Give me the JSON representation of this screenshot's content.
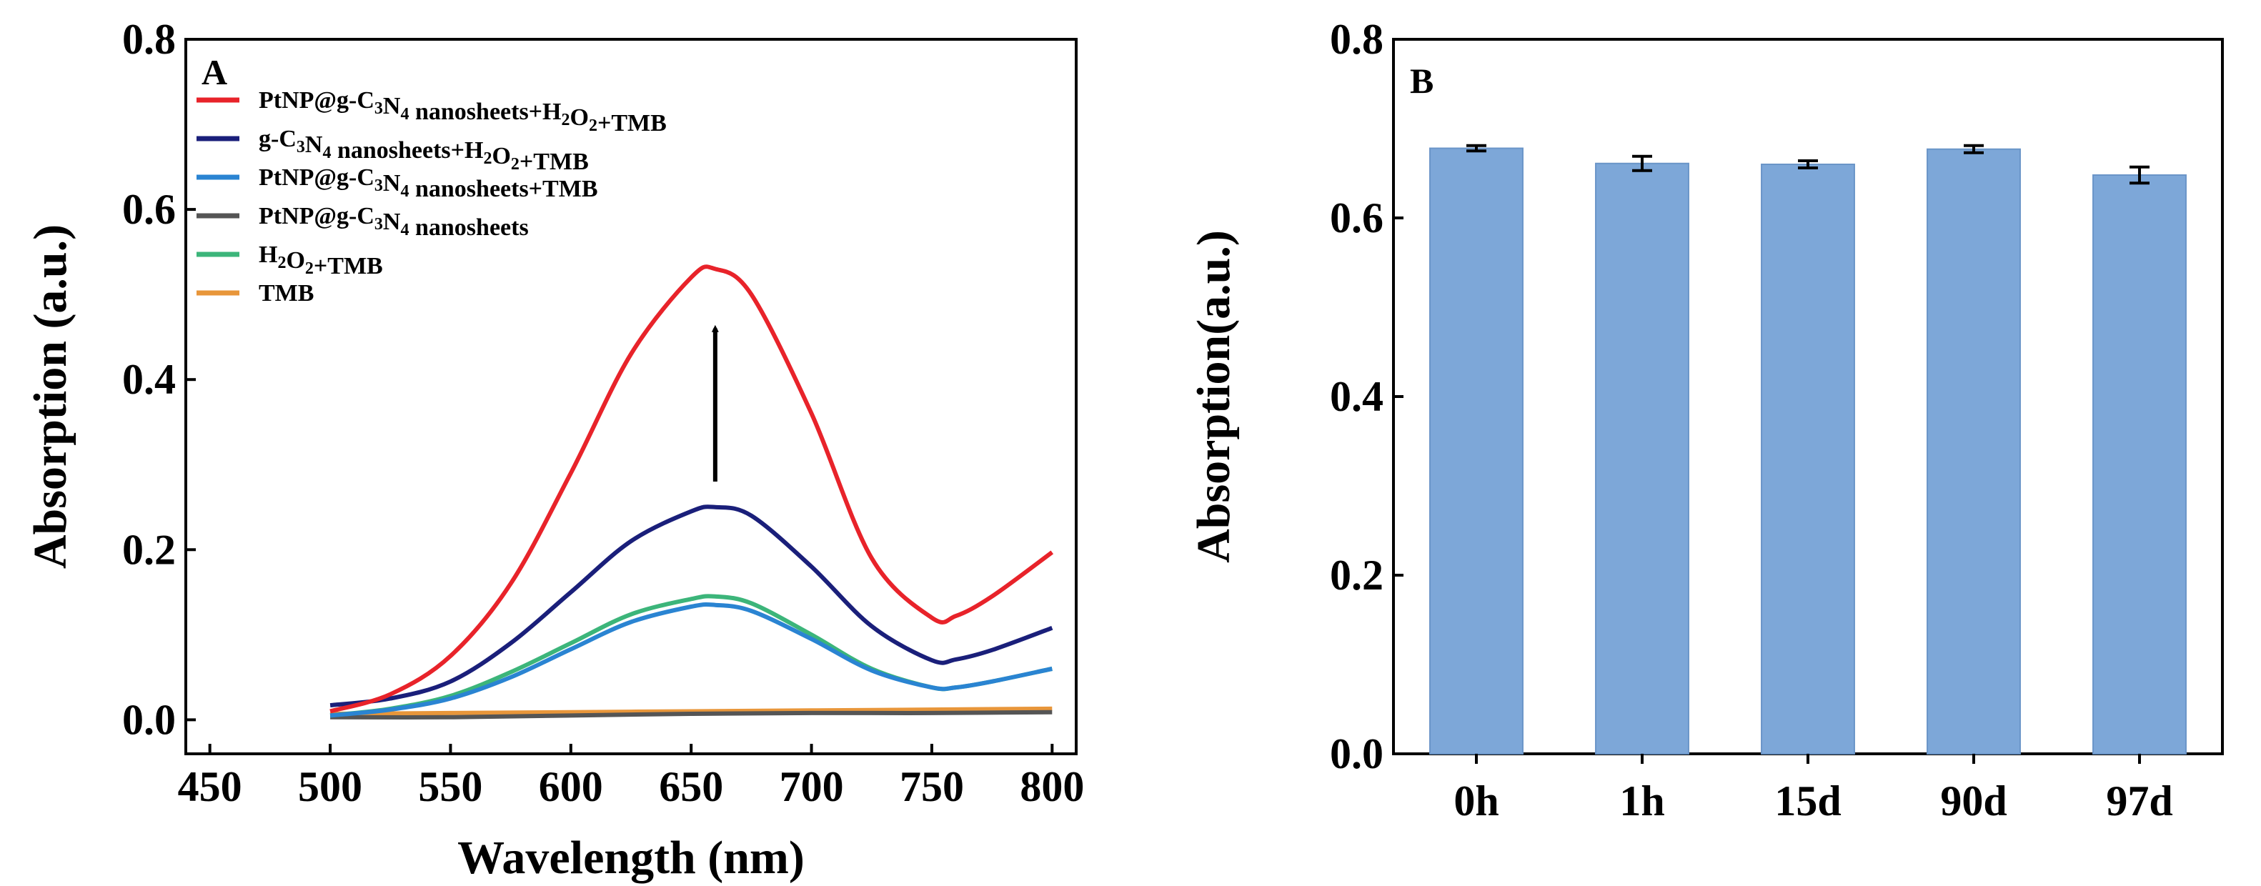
{
  "chart_data": [
    {
      "panel": "A",
      "type": "line",
      "xlabel": "Wavelength (nm)",
      "ylabel": "Absorption (a.u.)",
      "xlim": [
        440,
        810
      ],
      "ylim": [
        -0.04,
        0.8
      ],
      "xticks": [
        "450",
        "500",
        "550",
        "600",
        "650",
        "700",
        "750",
        "800"
      ],
      "yticks": [
        "0.0",
        "0.2",
        "0.4",
        "0.6",
        "0.8"
      ],
      "legend_position": "top-left",
      "annotation": "upward arrow near 660 nm, from 0.28 to 0.46",
      "series": [
        {
          "name": "PtNP@g-C3N4 nanosheets+H2O2+TMB",
          "legend": {
            "pre": "PtNP@g-C",
            "s1": "3",
            "m1": "N",
            "s2": "4",
            "m2": " nanosheets+H",
            "s3": "2",
            "m3": "O",
            "s4": "2",
            "post": "+TMB"
          },
          "color": "#e8232a",
          "x": [
            500,
            525,
            550,
            575,
            600,
            625,
            650,
            660,
            675,
            700,
            725,
            750,
            760,
            775,
            800
          ],
          "y": [
            0.01,
            0.03,
            0.075,
            0.16,
            0.29,
            0.43,
            0.52,
            0.53,
            0.5,
            0.36,
            0.19,
            0.12,
            0.122,
            0.145,
            0.197
          ]
        },
        {
          "name": "g-C3N4 nanosheets+H2O2+TMB",
          "legend": {
            "pre": "g-C",
            "s1": "3",
            "m1": "N",
            "s2": "4",
            "m2": " nanosheets+H",
            "s3": "2",
            "m3": "O",
            "s4": "2",
            "post": "+TMB"
          },
          "color": "#1a1f7a",
          "x": [
            500,
            525,
            550,
            575,
            600,
            625,
            650,
            660,
            675,
            700,
            725,
            750,
            760,
            775,
            800
          ],
          "y": [
            0.017,
            0.025,
            0.045,
            0.09,
            0.15,
            0.21,
            0.245,
            0.25,
            0.24,
            0.18,
            0.11,
            0.07,
            0.071,
            0.082,
            0.108
          ]
        },
        {
          "name": "PtNP@g-C3N4 nanosheets+TMB",
          "legend": {
            "pre": "PtNP@g-C",
            "s1": "3",
            "m1": "N",
            "s2": "4",
            "m2": "",
            "s3": "",
            "m3": "",
            "s4": "",
            "post": " nanosheets+TMB"
          },
          "color": "#2a84d2",
          "x": [
            500,
            525,
            550,
            575,
            600,
            625,
            650,
            660,
            675,
            700,
            725,
            750,
            760,
            775,
            800
          ],
          "y": [
            0.005,
            0.012,
            0.025,
            0.05,
            0.083,
            0.115,
            0.133,
            0.135,
            0.128,
            0.095,
            0.058,
            0.038,
            0.038,
            0.045,
            0.06
          ]
        },
        {
          "name": "PtNP@g-C3N4 nanosheets",
          "legend": {
            "pre": "PtNP@g-C",
            "s1": "3",
            "m1": "N",
            "s2": "4",
            "m2": "",
            "s3": "",
            "m3": "",
            "s4": "",
            "post": " nanosheets"
          },
          "color": "#555555",
          "x": [
            500,
            550,
            600,
            650,
            700,
            750,
            800
          ],
          "y": [
            0.003,
            0.003,
            0.005,
            0.007,
            0.008,
            0.008,
            0.009
          ]
        },
        {
          "name": "H2O2+TMB",
          "legend": {
            "pre": "H",
            "s1": "2",
            "m1": "O",
            "s2": "2",
            "m2": "",
            "s3": "",
            "m3": "",
            "s4": "",
            "post": "+TMB"
          },
          "color": "#3cb57a",
          "x": [
            500,
            525,
            550,
            575,
            600,
            625,
            650,
            660,
            675,
            700,
            725,
            750,
            760,
            775,
            800
          ],
          "y": [
            0.005,
            0.013,
            0.028,
            0.056,
            0.09,
            0.124,
            0.142,
            0.145,
            0.137,
            0.1,
            0.06,
            0.038,
            0.038,
            0.045,
            0.06
          ]
        },
        {
          "name": "TMB",
          "legend": {
            "pre": "TMB",
            "s1": "",
            "m1": "",
            "s2": "",
            "m2": "",
            "s3": "",
            "m3": "",
            "s4": "",
            "post": ""
          },
          "color": "#e8963a",
          "x": [
            500,
            550,
            600,
            650,
            700,
            750,
            800
          ],
          "y": [
            0.007,
            0.008,
            0.009,
            0.01,
            0.011,
            0.012,
            0.013
          ]
        }
      ]
    },
    {
      "panel": "B",
      "type": "bar",
      "ylabel": "Absorption(a.u.)",
      "ylim": [
        0.0,
        0.8
      ],
      "yticks": [
        "0.0",
        "0.2",
        "0.4",
        "0.6",
        "0.8"
      ],
      "categories": [
        "0h",
        "1h",
        "15d",
        "90d",
        "97d"
      ],
      "values": [
        0.678,
        0.661,
        0.66,
        0.677,
        0.648
      ],
      "errors": [
        0.003,
        0.008,
        0.004,
        0.004,
        0.009
      ],
      "bar_color": "#7da7d8",
      "bar_edge": "#6a95c8"
    }
  ]
}
